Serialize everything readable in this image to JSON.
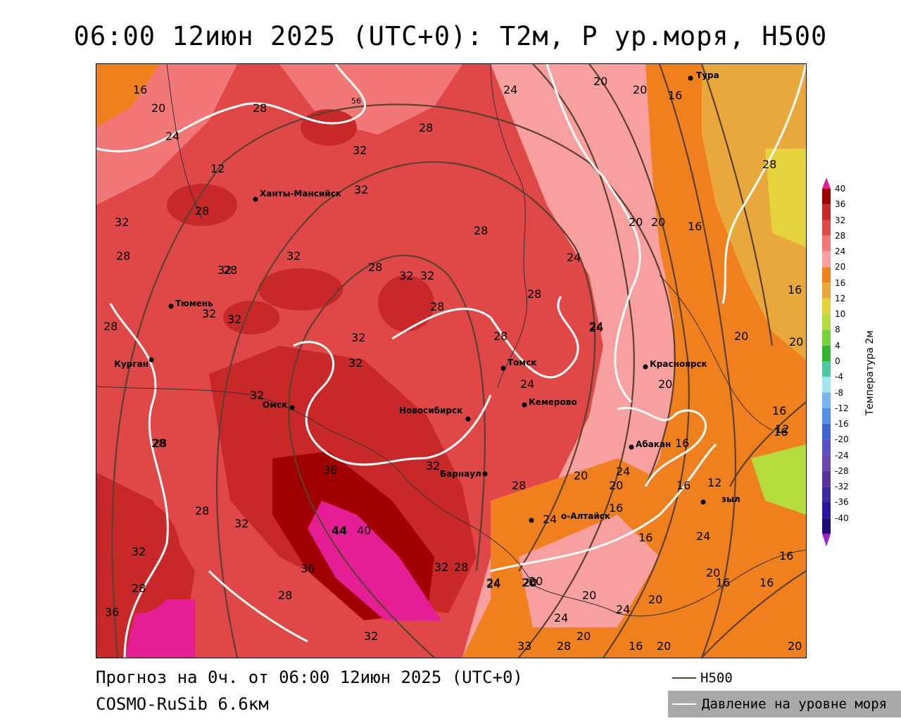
{
  "title": "06:00 12июн 2025 (UTC+0): T2м, P ур.моря, H500",
  "footer": {
    "forecast": "Прогноз на 0ч. от 06:00 12июн 2025 (UTC+0)",
    "model": "COSMO-RuSib 6.6км"
  },
  "legend": {
    "h500": "H500",
    "pressure": "Давление на уровне моря"
  },
  "colorbar": {
    "title": "Температура 2м",
    "labels": [
      "40",
      "36",
      "32",
      "28",
      "24",
      "20",
      "16",
      "12",
      "10",
      "8",
      "4",
      "0",
      "-4",
      "-8",
      "-12",
      "-16",
      "-20",
      "-24",
      "-28",
      "-32",
      "-36",
      "-40"
    ],
    "colors": [
      "#a00000",
      "#c82828",
      "#e04848",
      "#f27878",
      "#f8a0a0",
      "#f0801e",
      "#e8a83c",
      "#e6d23c",
      "#b4dc3c",
      "#78d23c",
      "#32b432",
      "#50c8a0",
      "#a0e6f0",
      "#78b4f0",
      "#5090e6",
      "#3c64d2",
      "#5a50c8",
      "#6e46b4",
      "#5a32a0",
      "#3c28a0",
      "#2814a0",
      "#1e0a78"
    ],
    "top_color": "#e61e96",
    "bottom_color": "#a020c8"
  },
  "cities": [
    {
      "name": "Тура"
    },
    {
      "name": "Ханты-Мансийск"
    },
    {
      "name": "Тюмень"
    },
    {
      "name": "Курган"
    },
    {
      "name": "Омск"
    },
    {
      "name": "Новосибирск"
    },
    {
      "name": "Томск"
    },
    {
      "name": "Кемерово"
    },
    {
      "name": "Красноярск"
    },
    {
      "name": "Абакан"
    },
    {
      "name": "Барнаул"
    },
    {
      "name": "о-Алтайск"
    },
    {
      "name": "зыл"
    }
  ],
  "isolines": [
    "16",
    "20",
    "24",
    "28",
    "56",
    "32",
    "28",
    "20",
    "16",
    "20",
    "24",
    "32",
    "28",
    "12",
    "28",
    "32",
    "28",
    "32",
    "32",
    "32",
    "28",
    "24",
    "20",
    "20",
    "16",
    "28",
    "32",
    "32",
    "28",
    "24",
    "16",
    "28",
    "32",
    "28",
    "32",
    "28",
    "24",
    "20",
    "28",
    "32",
    "24",
    "20",
    "16",
    "28",
    "32",
    "20",
    "32",
    "16",
    "32",
    "36",
    "16",
    "12",
    "12",
    "28",
    "28",
    "24",
    "20",
    "16",
    "16",
    "24",
    "28",
    "32",
    "44",
    "40",
    "24",
    "20",
    "36",
    "20",
    "24",
    "16",
    "32",
    "28",
    "24",
    "16",
    "20",
    "20",
    "36",
    "28",
    "24",
    "20",
    "32",
    "20",
    "16",
    "20",
    "33",
    "28",
    "16",
    "32",
    "28",
    "24",
    "16",
    "20",
    "20",
    "20"
  ]
}
